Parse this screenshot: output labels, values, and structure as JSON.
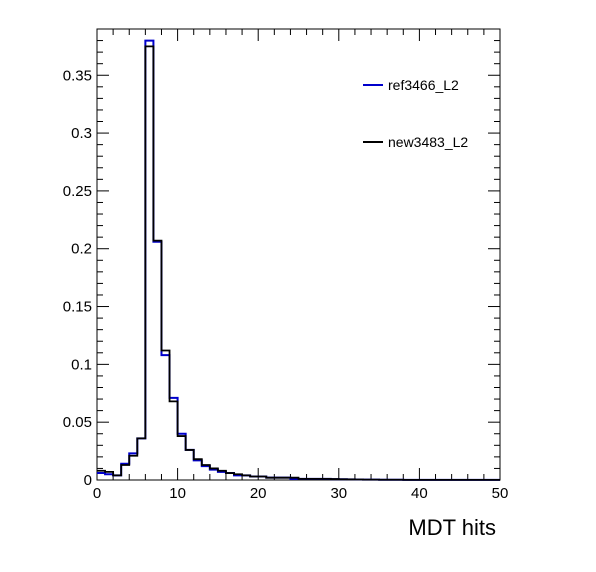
{
  "chart_data": {
    "type": "step-histogram",
    "title": "",
    "xlabel": "MDT hits",
    "ylabel": "",
    "xlim": [
      0,
      50
    ],
    "ylim": [
      0,
      0.39
    ],
    "bin_width": 1,
    "x_ticks": [
      0,
      10,
      20,
      30,
      40,
      50
    ],
    "x_tick_labels": [
      "0",
      "10",
      "20",
      "30",
      "40",
      "50"
    ],
    "y_ticks": [
      0,
      0.05,
      0.1,
      0.15,
      0.2,
      0.25,
      0.3,
      0.35
    ],
    "y_tick_labels": [
      "0",
      "0.05",
      "0.1",
      "0.15",
      "0.2",
      "0.25",
      "0.3",
      "0.35"
    ],
    "legend_position": "top-right",
    "series": [
      {
        "name": "ref3466_L2",
        "color": "#0000cc",
        "values": [
          0.006,
          0.005,
          0.004,
          0.014,
          0.023,
          0.036,
          0.38,
          0.206,
          0.108,
          0.071,
          0.04,
          0.026,
          0.017,
          0.012,
          0.009,
          0.007,
          0.006,
          0.004,
          0.004,
          0.003,
          0.003,
          0.002,
          0.002,
          0.002,
          0.001,
          0.001,
          0.001,
          0.001,
          0.001,
          0.0008,
          0.0006,
          0.0005,
          0.0004,
          0.0003,
          0.0003,
          0.0002,
          0.0002,
          0.0002,
          0.0001,
          0.0001,
          0.0001,
          0.0001,
          0.0001,
          0.0001,
          0.0001,
          0.0001,
          0.0001,
          0.0001,
          0.0001,
          0.0001
        ]
      },
      {
        "name": "new3483_L2",
        "color": "#000000",
        "values": [
          0.008,
          0.007,
          0.004,
          0.013,
          0.021,
          0.036,
          0.375,
          0.207,
          0.112,
          0.068,
          0.038,
          0.026,
          0.018,
          0.013,
          0.01,
          0.008,
          0.006,
          0.005,
          0.004,
          0.003,
          0.003,
          0.002,
          0.002,
          0.002,
          0.002,
          0.001,
          0.001,
          0.001,
          0.001,
          0.0008,
          0.0006,
          0.0005,
          0.0004,
          0.0003,
          0.0003,
          0.0002,
          0.0002,
          0.0002,
          0.0001,
          0.0001,
          0.0001,
          0.0001,
          0.0001,
          0.0001,
          0.0001,
          0.0001,
          0.0001,
          0.0001,
          0.0001,
          0.0001
        ]
      }
    ]
  }
}
